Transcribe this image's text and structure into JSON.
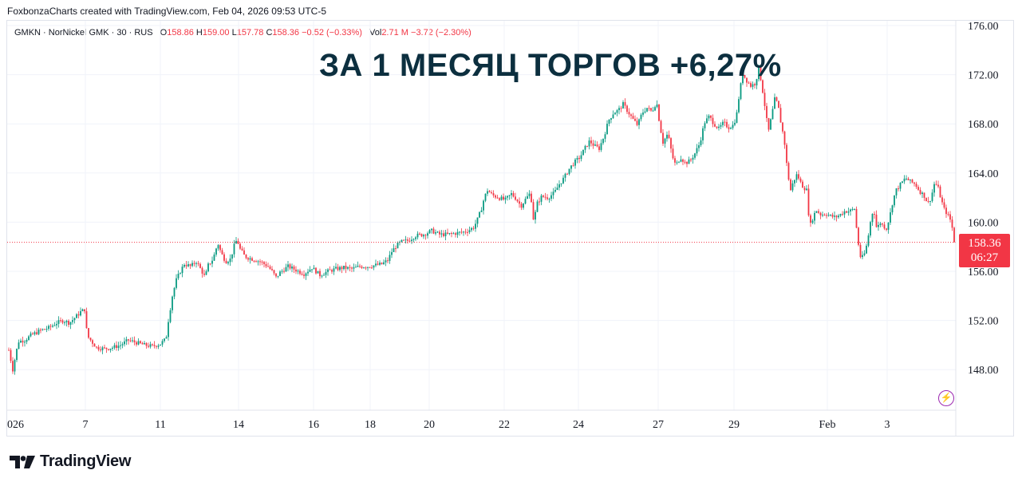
{
  "header": {
    "credit": "FoxbonzaCharts created with TradingView.com, Feb 04, 2026 09:53 UTC-5"
  },
  "legend": {
    "symbol": "GMKN · NorNickel GMK · 30 · RUS",
    "open_label": "O",
    "open": "158.86",
    "high_label": "H",
    "high": "159.00",
    "low_label": "L",
    "low": "157.78",
    "close_label": "C",
    "close": "158.36",
    "change": "−0.52 (−0.33%)",
    "vol_label": "Vol",
    "volume": "2.71 M",
    "vol_change": "−3.72 (−2.30%)"
  },
  "headline": "ЗА 1 МЕСЯЦ ТОРГОВ +6,27%",
  "price_badge": {
    "price": "158.36",
    "countdown": "06:27"
  },
  "footer": {
    "logo_text": "TradingView"
  },
  "colors": {
    "up": "#089981",
    "down": "#f23645",
    "grid": "#f0f3fa",
    "axis_text": "#131722",
    "headline": "#0c2f3f",
    "current_line": "#f23645",
    "accent_icon": "#9c27b0"
  },
  "chart_data": {
    "type": "candlestick",
    "title": "",
    "xlabel": "",
    "ylabel": "",
    "ylim": [
      145.5,
      177
    ],
    "grid": true,
    "current_price": 158.36,
    "y_ticks": [
      "176.00",
      "172.00",
      "168.00",
      "164.00",
      "160.00",
      "156.00",
      "152.00",
      "148.00"
    ],
    "x_ticks": [
      "026",
      "7",
      "11",
      "14",
      "16",
      "18",
      "20",
      "22",
      "24",
      "27",
      "29",
      "Feb",
      "3"
    ],
    "close_path": [
      [
        0,
        149.6
      ],
      [
        5,
        148.0
      ],
      [
        12,
        150.3
      ],
      [
        20,
        150.4
      ],
      [
        28,
        150.8
      ],
      [
        40,
        151.2
      ],
      [
        50,
        151.4
      ],
      [
        60,
        151.8
      ],
      [
        68,
        152.0
      ],
      [
        76,
        151.8
      ],
      [
        84,
        152.3
      ],
      [
        90,
        152.7
      ],
      [
        95,
        152.9
      ],
      [
        97,
        151.4
      ],
      [
        100,
        150.6
      ],
      [
        110,
        149.8
      ],
      [
        120,
        149.7
      ],
      [
        130,
        149.8
      ],
      [
        140,
        150.0
      ],
      [
        150,
        150.4
      ],
      [
        160,
        150.2
      ],
      [
        170,
        150.0
      ],
      [
        180,
        149.9
      ],
      [
        190,
        150.1
      ],
      [
        197,
        150.5
      ],
      [
        200,
        152.0
      ],
      [
        205,
        154.0
      ],
      [
        210,
        155.3
      ],
      [
        215,
        156.0
      ],
      [
        220,
        156.6
      ],
      [
        228,
        156.4
      ],
      [
        235,
        156.8
      ],
      [
        242,
        156.0
      ],
      [
        246,
        155.5
      ],
      [
        250,
        156.5
      ],
      [
        256,
        157.0
      ],
      [
        262,
        158.3
      ],
      [
        266,
        157.5
      ],
      [
        272,
        156.8
      ],
      [
        278,
        157.0
      ],
      [
        282,
        158.0
      ],
      [
        286,
        158.6
      ],
      [
        290,
        157.8
      ],
      [
        296,
        157.2
      ],
      [
        305,
        157.0
      ],
      [
        315,
        156.8
      ],
      [
        325,
        156.4
      ],
      [
        330,
        156.0
      ],
      [
        335,
        155.5
      ],
      [
        340,
        155.9
      ],
      [
        350,
        156.4
      ],
      [
        360,
        156.1
      ],
      [
        370,
        155.8
      ],
      [
        380,
        156.3
      ],
      [
        390,
        155.7
      ],
      [
        400,
        156.0
      ],
      [
        410,
        156.2
      ],
      [
        420,
        156.3
      ],
      [
        430,
        156.2
      ],
      [
        440,
        156.4
      ],
      [
        450,
        156.4
      ],
      [
        460,
        156.5
      ],
      [
        468,
        156.6
      ],
      [
        475,
        156.9
      ],
      [
        480,
        157.6
      ],
      [
        486,
        158.1
      ],
      [
        492,
        158.4
      ],
      [
        500,
        158.5
      ],
      [
        510,
        158.9
      ],
      [
        520,
        159.0
      ],
      [
        530,
        159.3
      ],
      [
        540,
        159.0
      ],
      [
        550,
        159.0
      ],
      [
        560,
        159.1
      ],
      [
        570,
        159.2
      ],
      [
        578,
        159.4
      ],
      [
        583,
        159.6
      ],
      [
        588,
        160.3
      ],
      [
        592,
        161.0
      ],
      [
        596,
        162.0
      ],
      [
        600,
        162.6
      ],
      [
        606,
        162.2
      ],
      [
        614,
        162.0
      ],
      [
        622,
        161.8
      ],
      [
        630,
        162.3
      ],
      [
        636,
        161.9
      ],
      [
        642,
        161.3
      ],
      [
        648,
        161.9
      ],
      [
        654,
        162.4
      ],
      [
        658,
        160.0
      ],
      [
        662,
        161.5
      ],
      [
        668,
        162.1
      ],
      [
        676,
        162.0
      ],
      [
        684,
        162.4
      ],
      [
        690,
        163.1
      ],
      [
        696,
        163.6
      ],
      [
        702,
        164.3
      ],
      [
        708,
        164.8
      ],
      [
        716,
        165.3
      ],
      [
        722,
        166.0
      ],
      [
        728,
        166.6
      ],
      [
        734,
        166.2
      ],
      [
        740,
        166.0
      ],
      [
        746,
        167.0
      ],
      [
        752,
        168.3
      ],
      [
        758,
        168.9
      ],
      [
        764,
        169.1
      ],
      [
        770,
        169.6
      ],
      [
        776,
        169.0
      ],
      [
        782,
        168.4
      ],
      [
        788,
        167.9
      ],
      [
        794,
        168.9
      ],
      [
        800,
        169.3
      ],
      [
        806,
        169.0
      ],
      [
        812,
        169.8
      ],
      [
        816,
        167.9
      ],
      [
        820,
        166.5
      ],
      [
        826,
        167.2
      ],
      [
        832,
        165.3
      ],
      [
        836,
        164.6
      ],
      [
        842,
        165.3
      ],
      [
        848,
        164.8
      ],
      [
        854,
        165.0
      ],
      [
        860,
        165.6
      ],
      [
        866,
        166.4
      ],
      [
        872,
        168.1
      ],
      [
        878,
        168.6
      ],
      [
        884,
        168.0
      ],
      [
        890,
        167.6
      ],
      [
        896,
        168.1
      ],
      [
        902,
        167.7
      ],
      [
        908,
        167.9
      ],
      [
        912,
        168.6
      ],
      [
        916,
        170.6
      ],
      [
        920,
        172.1
      ],
      [
        924,
        171.6
      ],
      [
        930,
        171.1
      ],
      [
        936,
        171.3
      ],
      [
        940,
        172.6
      ],
      [
        944,
        171.1
      ],
      [
        948,
        169.3
      ],
      [
        952,
        167.3
      ],
      [
        956,
        168.6
      ],
      [
        960,
        170.0
      ],
      [
        964,
        169.6
      ],
      [
        968,
        168.0
      ],
      [
        972,
        166.7
      ],
      [
        976,
        164.1
      ],
      [
        980,
        162.6
      ],
      [
        984,
        163.4
      ],
      [
        988,
        163.9
      ],
      [
        994,
        163.0
      ],
      [
        1000,
        162.6
      ],
      [
        1004,
        159.6
      ],
      [
        1008,
        160.4
      ],
      [
        1012,
        161.0
      ],
      [
        1018,
        160.6
      ],
      [
        1024,
        160.7
      ],
      [
        1030,
        160.5
      ],
      [
        1036,
        160.4
      ],
      [
        1042,
        160.6
      ],
      [
        1048,
        160.9
      ],
      [
        1054,
        160.9
      ],
      [
        1060,
        161.1
      ],
      [
        1064,
        158.6
      ],
      [
        1068,
        157.0
      ],
      [
        1072,
        157.3
      ],
      [
        1076,
        158.3
      ],
      [
        1080,
        160.0
      ],
      [
        1084,
        161.2
      ],
      [
        1088,
        159.4
      ],
      [
        1092,
        160.0
      ],
      [
        1096,
        159.7
      ],
      [
        1100,
        159.5
      ],
      [
        1104,
        160.4
      ],
      [
        1108,
        161.7
      ],
      [
        1112,
        162.6
      ],
      [
        1118,
        163.1
      ],
      [
        1124,
        163.6
      ],
      [
        1130,
        163.3
      ],
      [
        1136,
        163.1
      ],
      [
        1142,
        162.5
      ],
      [
        1148,
        162.1
      ],
      [
        1152,
        161.5
      ],
      [
        1156,
        162.0
      ],
      [
        1160,
        163.1
      ],
      [
        1164,
        163.0
      ],
      [
        1168,
        162.0
      ],
      [
        1172,
        161.1
      ],
      [
        1176,
        160.7
      ],
      [
        1180,
        160.2
      ],
      [
        1183,
        159.4
      ],
      [
        1186,
        158.36
      ]
    ]
  }
}
